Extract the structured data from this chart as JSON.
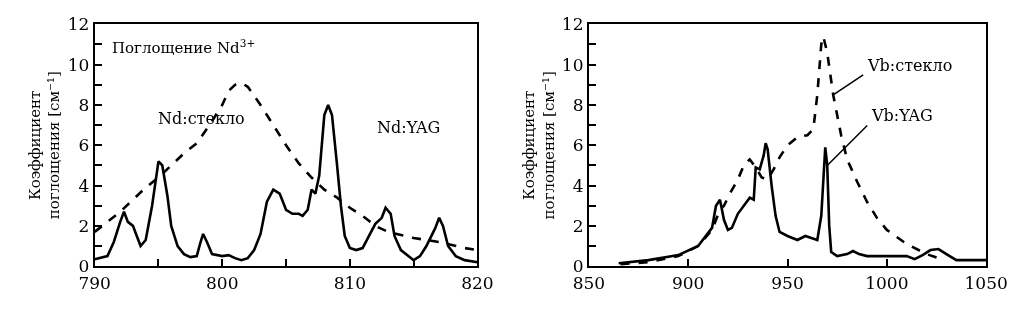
{
  "chart_data": [
    {
      "type": "line",
      "ylabel": "Коэффициент\nпоглощения [см⁻¹]",
      "annotations": [
        "Поглощение Nd$^{3+}$"
      ],
      "xlim": [
        790,
        820
      ],
      "xticks": [
        790,
        {
          "value": 795,
          "label": null
        },
        800,
        {
          "value": 805,
          "label": null
        },
        810,
        {
          "value": 815,
          "label": null
        },
        820
      ],
      "ylim": [
        0,
        12
      ],
      "yticks": [
        0,
        {
          "value": 1,
          "label": null
        },
        2,
        {
          "value": 3,
          "label": null
        },
        4,
        {
          "value": 5,
          "label": null
        },
        6,
        {
          "value": 7,
          "label": null
        },
        8,
        {
          "value": 9,
          "label": null
        },
        10,
        {
          "value": 11,
          "label": null
        },
        12
      ],
      "marker": "none",
      "series": [
        {
          "name": "Nd:стекло",
          "color": "#000000",
          "line_style": "dashed",
          "x": [
            790,
            791,
            792,
            793,
            794,
            795,
            796,
            797,
            798,
            799,
            800,
            800.5,
            801,
            801.5,
            802,
            803,
            804,
            805,
            806,
            807,
            808,
            809,
            810,
            811,
            812,
            813,
            815,
            817,
            819,
            820
          ],
          "values": [
            1.7,
            2.2,
            2.7,
            3.3,
            3.9,
            4.4,
            5.0,
            5.6,
            6.1,
            7.0,
            8.0,
            8.7,
            9.0,
            9.1,
            8.9,
            8.0,
            7.0,
            6.0,
            5.1,
            4.4,
            3.8,
            3.4,
            2.9,
            2.5,
            2.0,
            1.7,
            1.4,
            1.2,
            0.9,
            0.8
          ]
        },
        {
          "name": "Nd:YAG",
          "color": "#000000",
          "line_style": "solid",
          "x": [
            790,
            791,
            791.5,
            792,
            792.3,
            792.6,
            793,
            793.3,
            793.6,
            794,
            794.5,
            795,
            795.3,
            795.7,
            796,
            796.5,
            797,
            797.5,
            798,
            798.3,
            798.5,
            798.8,
            799.2,
            800,
            800.5,
            801,
            801.5,
            802,
            802.5,
            803,
            803.5,
            804,
            804.5,
            805,
            805.5,
            806,
            806.3,
            806.7,
            807,
            807.3,
            807.6,
            808,
            808.3,
            808.6,
            809,
            809.3,
            809.6,
            810,
            810.5,
            811,
            811.5,
            812,
            812.5,
            812.8,
            813.2,
            813.5,
            814,
            815,
            815.5,
            816,
            816.7,
            817,
            817.3,
            817.7,
            818.3,
            819,
            820
          ],
          "values": [
            0.35,
            0.5,
            1.2,
            2.2,
            2.7,
            2.2,
            2.0,
            1.5,
            1.0,
            1.3,
            3.0,
            5.2,
            5.0,
            3.5,
            2.0,
            1.0,
            0.6,
            0.45,
            0.5,
            1.2,
            1.6,
            1.2,
            0.6,
            0.5,
            0.55,
            0.4,
            0.3,
            0.4,
            0.8,
            1.6,
            3.2,
            3.8,
            3.6,
            2.8,
            2.6,
            2.6,
            2.5,
            2.8,
            3.8,
            3.6,
            4.5,
            7.5,
            8.0,
            7.5,
            5.0,
            3.0,
            1.5,
            0.9,
            0.8,
            0.9,
            1.5,
            2.1,
            2.4,
            2.9,
            2.6,
            1.5,
            0.8,
            0.3,
            0.5,
            1.0,
            1.9,
            2.4,
            2.0,
            1.0,
            0.5,
            0.3,
            0.2
          ]
        }
      ]
    },
    {
      "type": "line",
      "ylabel": "Коэффициент\nпоглощения [см⁻¹]",
      "xlim": [
        850,
        1050
      ],
      "xticks": [
        850,
        900,
        950,
        1000,
        1050
      ],
      "ylim": [
        0,
        12
      ],
      "yticks": [
        0,
        {
          "value": 1,
          "label": null
        },
        2,
        {
          "value": 3,
          "label": null
        },
        4,
        {
          "value": 5,
          "label": null
        },
        6,
        {
          "value": 7,
          "label": null
        },
        8,
        {
          "value": 9,
          "label": null
        },
        10,
        {
          "value": 11,
          "label": null
        },
        12
      ],
      "marker": "none",
      "series": [
        {
          "name": "Vb:стекло",
          "color": "#000000",
          "line_style": "dashed",
          "x": [
            866,
            880,
            895,
            905,
            912,
            916,
            918,
            921,
            925,
            928,
            931,
            934,
            937,
            940,
            943,
            946,
            950,
            955,
            960,
            963,
            965,
            967,
            968,
            970,
            973,
            977,
            980,
            985,
            990,
            995,
            1000,
            1010,
            1020,
            1026
          ],
          "values": [
            0.1,
            0.2,
            0.5,
            1.0,
            1.8,
            2.8,
            3.0,
            3.6,
            4.3,
            5.0,
            5.3,
            4.9,
            4.4,
            4.3,
            4.8,
            5.4,
            6.0,
            6.4,
            6.5,
            6.8,
            8.5,
            11.0,
            11.4,
            10.6,
            8.5,
            6.5,
            5.3,
            4.2,
            3.2,
            2.4,
            1.8,
            1.1,
            0.6,
            0.4
          ]
        },
        {
          "name": "Vb:YAG",
          "color": "#000000",
          "line_style": "solid",
          "x": [
            865,
            880,
            895,
            905,
            912,
            914,
            916,
            918,
            920,
            922,
            925,
            928,
            931,
            933,
            934,
            936,
            938,
            939,
            940,
            942,
            944,
            946,
            950,
            955,
            959,
            962,
            965,
            967,
            969,
            970,
            971,
            972,
            975,
            980,
            983,
            986,
            990,
            1000,
            1010,
            1014,
            1018,
            1022,
            1026,
            1030,
            1035,
            1050
          ],
          "values": [
            0.15,
            0.3,
            0.55,
            1.0,
            1.9,
            3.0,
            3.3,
            2.3,
            1.8,
            1.9,
            2.6,
            3.0,
            3.4,
            3.3,
            4.9,
            4.8,
            5.5,
            6.1,
            5.8,
            4.0,
            2.5,
            1.7,
            1.5,
            1.3,
            1.5,
            1.4,
            1.3,
            2.5,
            5.9,
            5.0,
            2.0,
            0.7,
            0.5,
            0.6,
            0.75,
            0.6,
            0.5,
            0.5,
            0.5,
            0.35,
            0.55,
            0.8,
            0.85,
            0.6,
            0.3,
            0.3
          ]
        }
      ]
    }
  ]
}
